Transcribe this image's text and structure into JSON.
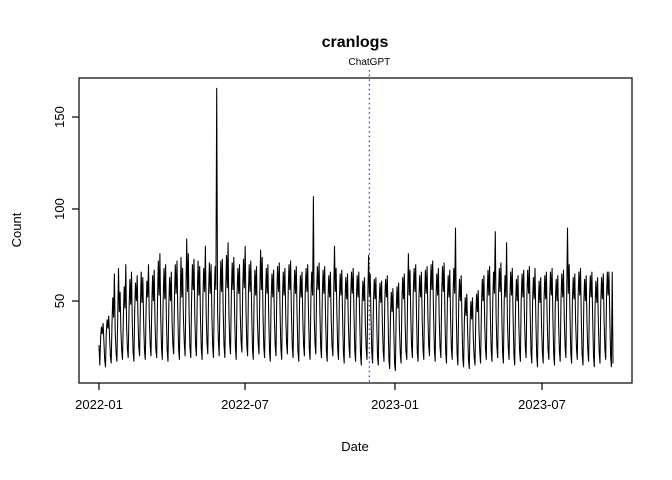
{
  "chart_data": {
    "type": "line",
    "title": "cranlogs",
    "xlabel": "Date",
    "ylabel": "Count",
    "x_tick_labels": [
      "2022-01",
      "2022-07",
      "2023-01",
      "2023-07"
    ],
    "y_tick_labels": [
      "50",
      "100",
      "150"
    ],
    "y_ticks": [
      50,
      100,
      150
    ],
    "start_date": "2022-01-01",
    "end_date": "2023-09-26",
    "frequency": "daily",
    "ylim": [
      5.4,
      171.4
    ],
    "series_color": "#000000",
    "background_color": "#ffffff",
    "box_color": "#000000",
    "annotation": {
      "label": "ChatGPT",
      "date": "2022-11-30",
      "color": "#3a3aec",
      "line_style": "dotted"
    },
    "notable_points": [
      {
        "date": "2022-05-26",
        "value": 166,
        "note": "maximum spike"
      },
      {
        "date": "2022-09-22",
        "value": 107,
        "note": "secondary spike"
      },
      {
        "date": "2023-03-16",
        "value": 90
      },
      {
        "date": "2023-05-04",
        "value": 88
      },
      {
        "date": "2023-08-01",
        "value": 90
      }
    ],
    "weekly_values": [
      [
        26,
        15,
        30,
        36,
        32,
        38,
        28
      ],
      [
        18,
        14,
        33,
        40,
        35,
        42,
        30
      ],
      [
        20,
        16,
        38,
        52,
        41,
        65,
        33
      ],
      [
        22,
        17,
        40,
        68,
        44,
        55,
        34
      ],
      [
        23,
        18,
        42,
        58,
        46,
        70,
        36
      ],
      [
        24,
        19,
        44,
        62,
        48,
        66,
        38
      ],
      [
        22,
        17,
        45,
        60,
        50,
        64,
        40
      ],
      [
        25,
        20,
        47,
        66,
        49,
        63,
        37
      ],
      [
        23,
        18,
        46,
        61,
        52,
        70,
        41
      ],
      [
        26,
        20,
        48,
        64,
        50,
        67,
        39
      ],
      [
        24,
        19,
        50,
        72,
        53,
        76,
        42
      ],
      [
        25,
        18,
        49,
        68,
        51,
        70,
        40
      ],
      [
        23,
        17,
        47,
        63,
        50,
        66,
        38
      ],
      [
        26,
        21,
        52,
        70,
        54,
        72,
        43
      ],
      [
        24,
        18,
        50,
        74,
        52,
        68,
        41
      ],
      [
        27,
        20,
        53,
        84,
        55,
        76,
        44
      ],
      [
        25,
        19,
        51,
        70,
        56,
        73,
        42
      ],
      [
        26,
        20,
        54,
        72,
        53,
        69,
        40
      ],
      [
        24,
        18,
        52,
        68,
        55,
        80,
        43
      ],
      [
        27,
        21,
        55,
        71,
        54,
        70,
        42
      ],
      [
        25,
        19,
        53,
        69,
        56,
        166,
        44
      ],
      [
        28,
        20,
        54,
        72,
        55,
        73,
        45
      ],
      [
        26,
        19,
        56,
        75,
        57,
        82,
        44
      ],
      [
        27,
        21,
        55,
        71,
        56,
        74,
        43
      ],
      [
        25,
        18,
        53,
        68,
        54,
        70,
        42
      ],
      [
        28,
        22,
        56,
        73,
        57,
        80,
        45
      ],
      [
        26,
        20,
        54,
        70,
        55,
        72,
        44
      ],
      [
        24,
        18,
        52,
        67,
        53,
        69,
        41
      ],
      [
        27,
        21,
        55,
        78,
        56,
        74,
        43
      ],
      [
        25,
        19,
        53,
        68,
        54,
        70,
        42
      ],
      [
        23,
        17,
        51,
        65,
        52,
        67,
        40
      ],
      [
        26,
        20,
        54,
        69,
        55,
        71,
        43
      ],
      [
        24,
        18,
        52,
        66,
        53,
        68,
        41
      ],
      [
        27,
        21,
        55,
        70,
        56,
        72,
        44
      ],
      [
        25,
        19,
        53,
        67,
        54,
        69,
        42
      ],
      [
        23,
        17,
        51,
        64,
        52,
        66,
        40
      ],
      [
        26,
        20,
        54,
        68,
        55,
        70,
        43
      ],
      [
        24,
        18,
        52,
        66,
        53,
        107,
        42
      ],
      [
        27,
        21,
        55,
        69,
        56,
        71,
        44
      ],
      [
        25,
        19,
        53,
        67,
        54,
        69,
        42
      ],
      [
        23,
        17,
        51,
        64,
        52,
        66,
        40
      ],
      [
        26,
        20,
        54,
        80,
        55,
        68,
        43
      ],
      [
        24,
        18,
        52,
        65,
        53,
        67,
        41
      ],
      [
        22,
        16,
        50,
        63,
        51,
        65,
        39
      ],
      [
        25,
        19,
        53,
        66,
        54,
        68,
        42
      ],
      [
        23,
        17,
        51,
        64,
        52,
        66,
        40
      ],
      [
        21,
        15,
        49,
        61,
        50,
        63,
        38
      ],
      [
        24,
        18,
        52,
        75,
        53,
        65,
        41
      ],
      [
        22,
        16,
        50,
        62,
        51,
        63,
        39
      ],
      [
        20,
        15,
        48,
        60,
        49,
        61,
        37
      ],
      [
        23,
        17,
        51,
        62,
        52,
        64,
        40
      ],
      [
        18,
        13,
        42,
        55,
        44,
        57,
        34
      ],
      [
        16,
        12,
        44,
        58,
        46,
        60,
        36
      ],
      [
        21,
        16,
        50,
        63,
        51,
        65,
        39
      ],
      [
        23,
        18,
        52,
        76,
        53,
        67,
        41
      ],
      [
        25,
        19,
        54,
        68,
        55,
        70,
        43
      ],
      [
        22,
        17,
        51,
        64,
        52,
        66,
        40
      ],
      [
        24,
        18,
        53,
        67,
        54,
        69,
        42
      ],
      [
        26,
        20,
        55,
        70,
        56,
        72,
        44
      ],
      [
        23,
        17,
        52,
        65,
        53,
        68,
        41
      ],
      [
        25,
        19,
        54,
        69,
        55,
        71,
        43
      ],
      [
        22,
        16,
        51,
        64,
        52,
        67,
        40
      ],
      [
        24,
        18,
        53,
        68,
        54,
        90,
        42
      ],
      [
        21,
        15,
        49,
        62,
        50,
        64,
        38
      ],
      [
        19,
        14,
        40,
        52,
        42,
        54,
        32
      ],
      [
        18,
        13,
        38,
        50,
        40,
        52,
        30
      ],
      [
        20,
        15,
        42,
        54,
        44,
        56,
        34
      ],
      [
        22,
        16,
        48,
        62,
        50,
        64,
        38
      ],
      [
        24,
        18,
        52,
        67,
        53,
        69,
        41
      ],
      [
        23,
        17,
        51,
        66,
        54,
        88,
        42
      ],
      [
        25,
        19,
        53,
        68,
        55,
        71,
        43
      ],
      [
        22,
        16,
        50,
        64,
        52,
        82,
        40
      ],
      [
        24,
        18,
        52,
        66,
        53,
        68,
        41
      ],
      [
        21,
        15,
        49,
        62,
        50,
        64,
        38
      ],
      [
        23,
        17,
        51,
        65,
        52,
        67,
        40
      ],
      [
        25,
        19,
        53,
        67,
        54,
        69,
        42
      ],
      [
        22,
        16,
        50,
        63,
        51,
        68,
        39
      ],
      [
        20,
        14,
        48,
        61,
        49,
        63,
        37
      ],
      [
        22,
        16,
        50,
        64,
        51,
        66,
        39
      ],
      [
        24,
        18,
        52,
        66,
        53,
        68,
        41
      ],
      [
        21,
        15,
        49,
        62,
        50,
        64,
        38
      ],
      [
        23,
        17,
        51,
        65,
        52,
        67,
        40
      ],
      [
        25,
        19,
        53,
        90,
        54,
        70,
        42
      ],
      [
        22,
        16,
        50,
        63,
        51,
        65,
        39
      ],
      [
        24,
        18,
        52,
        66,
        53,
        68,
        41
      ],
      [
        21,
        15,
        49,
        62,
        50,
        64,
        38
      ],
      [
        23,
        17,
        51,
        64,
        52,
        66,
        40
      ],
      [
        20,
        14,
        48,
        61,
        49,
        63,
        37
      ],
      [
        22,
        16,
        50,
        63,
        51,
        65,
        39
      ],
      [
        24,
        18,
        52,
        66,
        53,
        66,
        41
      ],
      [
        20,
        14,
        66,
        16
      ]
    ]
  }
}
